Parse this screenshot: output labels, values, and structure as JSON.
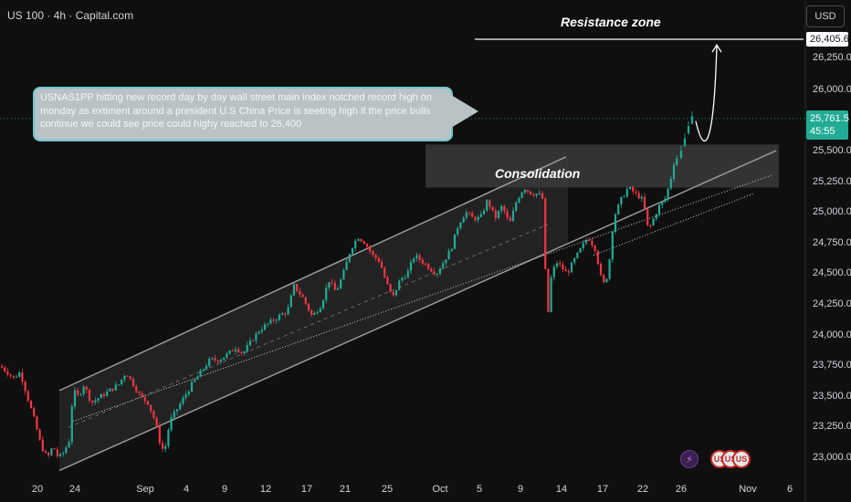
{
  "symbol_title": "US 100 · 4h · Capital.com",
  "currency_button": "USD",
  "price_tags": {
    "target": "26,405.6",
    "last_price": "25,761.5",
    "countdown": "45:55"
  },
  "annotation_text": "USNAS1PP hitting new record day by day wall street main index notched record high on monday as extiment around a president U.S China Price is seeting high if the price bulls continue we could see price could highy reached to 26,400",
  "labels": {
    "resistance": "Resistance zone",
    "consolidation": "Consolidation"
  },
  "y_axis_labels": [
    "26,250.0",
    "26,000.0",
    "25,500.0",
    "25,250.0",
    "25,000.0",
    "24,750.0",
    "24,500.0",
    "24,250.0",
    "24,000.0",
    "23,750.0",
    "23,500.0",
    "23,250.0",
    "23,000.0"
  ],
  "x_axis_labels": [
    "20",
    "24",
    "Sep",
    "4",
    "9",
    "12",
    "17",
    "21",
    "25",
    "Oct",
    "5",
    "9",
    "14",
    "17",
    "22",
    "26",
    "Nov",
    "6"
  ],
  "event_icons": [
    "lightning-icon",
    "us-flag-icon",
    "us-flag-icon",
    "us-flag-icon"
  ],
  "colors": {
    "up": "#22ab94",
    "down": "#f23645",
    "background": "#0f0f0f",
    "channel": "#9a9a9a",
    "bubble_border": "#6fc7cf"
  },
  "chart_data": {
    "type": "candlestick",
    "title": "US 100 · 4h · Capital.com",
    "x_tick_labels": [
      "20",
      "24",
      "Sep",
      "4",
      "9",
      "12",
      "17",
      "21",
      "25",
      "Oct",
      "5",
      "9",
      "14",
      "17",
      "22",
      "26",
      "Nov",
      "6"
    ],
    "y_range": [
      22950,
      26450
    ],
    "y_ticks": [
      23000,
      23250,
      23500,
      23750,
      24000,
      24250,
      24500,
      24750,
      25000,
      25250,
      25500,
      26000,
      26250
    ],
    "price_path": [
      [
        0,
        23750
      ],
      [
        8,
        23700
      ],
      [
        15,
        23650
      ],
      [
        22,
        23700
      ],
      [
        30,
        23500
      ],
      [
        38,
        23300
      ],
      [
        45,
        23100
      ],
      [
        52,
        23000
      ],
      [
        58,
        23100
      ],
      [
        64,
        23000
      ],
      [
        70,
        23050
      ],
      [
        76,
        23150
      ],
      [
        80,
        23550
      ],
      [
        86,
        23500
      ],
      [
        92,
        23600
      ],
      [
        100,
        23450
      ],
      [
        110,
        23500
      ],
      [
        120,
        23550
      ],
      [
        130,
        23600
      ],
      [
        138,
        23700
      ],
      [
        146,
        23600
      ],
      [
        154,
        23500
      ],
      [
        162,
        23450
      ],
      [
        170,
        23300
      ],
      [
        176,
        23100
      ],
      [
        180,
        23050
      ],
      [
        186,
        23300
      ],
      [
        194,
        23400
      ],
      [
        202,
        23500
      ],
      [
        210,
        23600
      ],
      [
        220,
        23700
      ],
      [
        230,
        23800
      ],
      [
        240,
        23800
      ],
      [
        250,
        23850
      ],
      [
        258,
        23900
      ],
      [
        266,
        23850
      ],
      [
        275,
        23950
      ],
      [
        285,
        24050
      ],
      [
        295,
        24100
      ],
      [
        305,
        24150
      ],
      [
        315,
        24200
      ],
      [
        322,
        24400
      ],
      [
        332,
        24300
      ],
      [
        342,
        24150
      ],
      [
        352,
        24250
      ],
      [
        360,
        24450
      ],
      [
        368,
        24350
      ],
      [
        376,
        24500
      ],
      [
        384,
        24700
      ],
      [
        392,
        24800
      ],
      [
        400,
        24750
      ],
      [
        408,
        24650
      ],
      [
        416,
        24600
      ],
      [
        422,
        24450
      ],
      [
        430,
        24300
      ],
      [
        438,
        24450
      ],
      [
        446,
        24500
      ],
      [
        454,
        24650
      ],
      [
        462,
        24600
      ],
      [
        470,
        24550
      ],
      [
        478,
        24500
      ],
      [
        486,
        24600
      ],
      [
        494,
        24700
      ],
      [
        502,
        24900
      ],
      [
        510,
        25000
      ],
      [
        518,
        24950
      ],
      [
        526,
        24950
      ],
      [
        534,
        25100
      ],
      [
        542,
        24950
      ],
      [
        550,
        25050
      ],
      [
        558,
        24900
      ],
      [
        566,
        25100
      ],
      [
        574,
        25200
      ],
      [
        582,
        25150
      ],
      [
        590,
        25150
      ],
      [
        595,
        25100
      ],
      [
        599,
        24050
      ],
      [
        603,
        24450
      ],
      [
        609,
        24600
      ],
      [
        615,
        24550
      ],
      [
        621,
        24500
      ],
      [
        628,
        24600
      ],
      [
        636,
        24700
      ],
      [
        644,
        24800
      ],
      [
        652,
        24700
      ],
      [
        660,
        24400
      ],
      [
        666,
        24500
      ],
      [
        672,
        24950
      ],
      [
        680,
        25100
      ],
      [
        688,
        25200
      ],
      [
        696,
        25150
      ],
      [
        704,
        25100
      ],
      [
        710,
        24850
      ],
      [
        716,
        24950
      ],
      [
        722,
        25050
      ],
      [
        728,
        25100
      ],
      [
        734,
        25250
      ],
      [
        738,
        25400
      ],
      [
        742,
        25450
      ]
    ],
    "final_run": [
      [
        746,
        25500
      ],
      [
        750,
        25600
      ],
      [
        754,
        25700
      ],
      [
        758,
        25780
      ]
    ],
    "channel_upper": [
      [
        65,
        23550
      ],
      [
        620,
        25450
      ]
    ],
    "channel_lower": [
      [
        65,
        22900
      ],
      [
        850,
        25500
      ]
    ],
    "dotted_mid": [
      [
        80,
        23300
      ],
      [
        845,
        25300
      ]
    ],
    "dotted_mid2": [
      [
        650,
        24650
      ],
      [
        825,
        25150
      ]
    ],
    "dashed_trend": [
      [
        75,
        23250
      ],
      [
        600,
        24900
      ]
    ],
    "consolidation_box": {
      "x": [
        466,
        853
      ],
      "y": [
        25200,
        25550
      ]
    },
    "shaded_channel_end": 622,
    "resistance_level": 26405.6,
    "resistance_line_x": [
      520,
      880
    ],
    "projection_path": [
      [
        762,
        25740
      ],
      [
        772,
        25420
      ],
      [
        782,
        25550
      ],
      [
        785,
        26360
      ]
    ],
    "last_price": 25761.5,
    "target_price": 26405.6
  }
}
